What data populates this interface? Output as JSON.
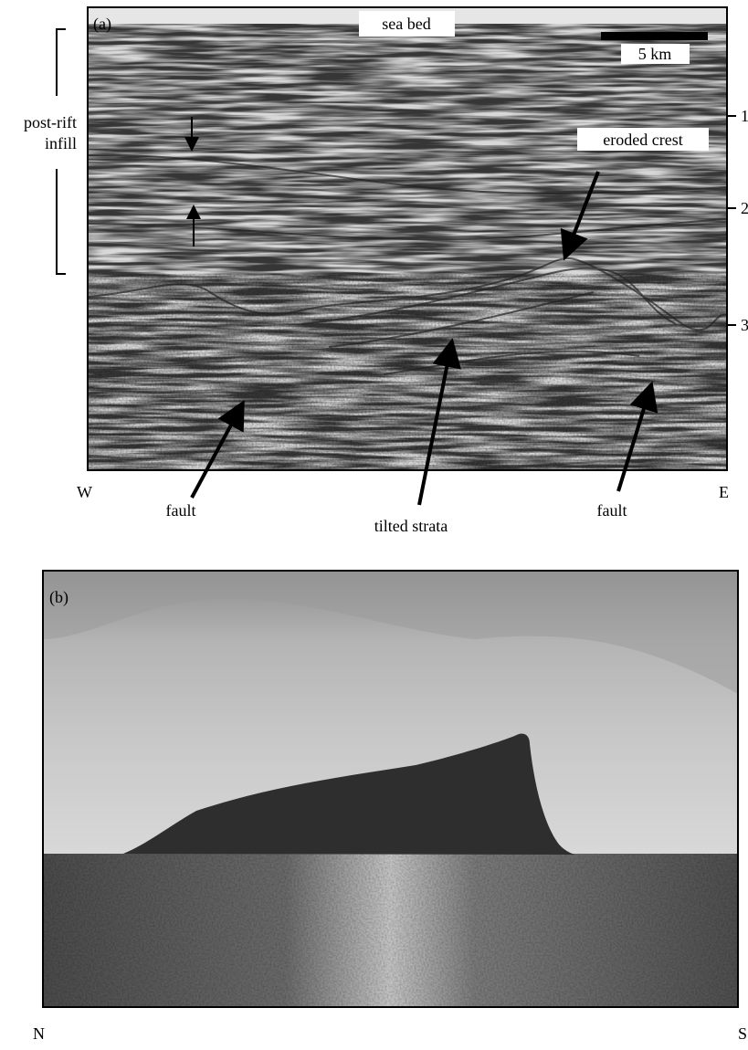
{
  "panel_a": {
    "label": "(a)",
    "sea_bed": "sea bed",
    "scale": "5 km",
    "bracket": [
      "post-rift",
      "infill"
    ],
    "eroded_crest": "eroded crest",
    "depth_ticks": [
      "1",
      "2",
      "3"
    ],
    "west": "W",
    "east": "E",
    "fault_left": "fault",
    "tilted_strata": "tilted strata",
    "fault_right": "fault"
  },
  "panel_b": {
    "label": "(b)",
    "north": "N",
    "south": "S"
  }
}
